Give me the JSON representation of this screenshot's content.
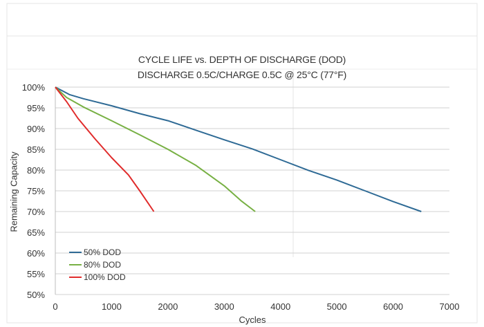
{
  "chart_data": {
    "type": "line",
    "title": "CYCLE LIFE vs. DEPTH OF DISCHARGE (DOD)",
    "subtitle": "DISCHARGE 0.5C/CHARGE 0.5C @ 25°C (77°F)",
    "xlabel": "Cycles",
    "ylabel": "Remaining Capacity",
    "xlim": [
      0,
      7000
    ],
    "ylim": [
      50,
      100
    ],
    "x_ticks": [
      0,
      1000,
      2000,
      3000,
      4000,
      5000,
      6000,
      7000
    ],
    "x_tick_labels": [
      "0",
      "1000",
      "2000",
      "3000",
      "4000",
      "5000",
      "6000",
      "7000"
    ],
    "y_ticks": [
      100,
      95,
      90,
      85,
      80,
      75,
      70,
      65,
      60,
      55,
      50
    ],
    "y_tick_labels": [
      "100%",
      "95%",
      "90%",
      "85%",
      "80%",
      "75%",
      "70%",
      "65%",
      "60%",
      "55%",
      "50%"
    ],
    "grid": "horizontal",
    "legend_position": "bottom-left",
    "series": [
      {
        "name": "50% DOD",
        "color": "#2e6a95",
        "points": [
          [
            0,
            100
          ],
          [
            250,
            98.2
          ],
          [
            500,
            97.2
          ],
          [
            1000,
            95.5
          ],
          [
            1500,
            93.6
          ],
          [
            2000,
            91.9
          ],
          [
            2500,
            89.6
          ],
          [
            3000,
            87.3
          ],
          [
            3500,
            85.1
          ],
          [
            4000,
            82.5
          ],
          [
            4500,
            79.9
          ],
          [
            5000,
            77.6
          ],
          [
            5500,
            75.0
          ],
          [
            6000,
            72.4
          ],
          [
            6500,
            70.0
          ]
        ]
      },
      {
        "name": "80% DOD",
        "color": "#77b043",
        "points": [
          [
            0,
            100
          ],
          [
            200,
            97.5
          ],
          [
            500,
            95.2
          ],
          [
            1000,
            91.9
          ],
          [
            1500,
            88.5
          ],
          [
            2000,
            85.0
          ],
          [
            2500,
            81.1
          ],
          [
            3000,
            76.2
          ],
          [
            3300,
            72.6
          ],
          [
            3550,
            70.0
          ]
        ]
      },
      {
        "name": "100% DOD",
        "color": "#e02b2b",
        "points": [
          [
            0,
            100
          ],
          [
            200,
            96.5
          ],
          [
            400,
            92.5
          ],
          [
            700,
            87.6
          ],
          [
            1000,
            83.0
          ],
          [
            1300,
            78.8
          ],
          [
            1500,
            75.0
          ],
          [
            1750,
            70.0
          ]
        ]
      }
    ]
  }
}
